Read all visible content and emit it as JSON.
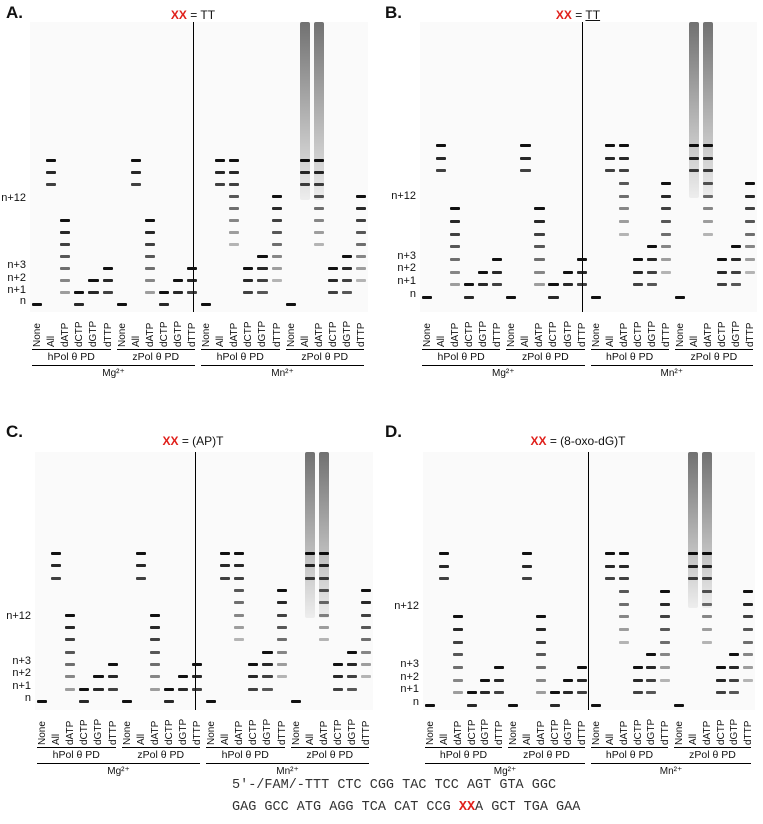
{
  "panels": [
    {
      "letter": "A.",
      "xx": "XX",
      "title_rest": " = TT",
      "underline": false
    },
    {
      "letter": "B.",
      "xx": "XX",
      "title_rest": "TT",
      "underline": true
    },
    {
      "letter": "C.",
      "xx": "XX",
      "title_rest": " = (AP)T",
      "underline": false
    },
    {
      "letter": "D.",
      "xx": "XX",
      "title_rest": " = (8-oxo-dG)T",
      "underline": false
    }
  ],
  "markers": [
    "n+12",
    "n+3",
    "n+2",
    "n+1",
    "n"
  ],
  "lanes": [
    "None",
    "All",
    "dATP",
    "dCTP",
    "dGTP",
    "dTTP"
  ],
  "groups": [
    "hPol θ PD",
    "zPol θ PD"
  ],
  "ions": [
    "Mg²⁺",
    "Mn²⁺"
  ],
  "equals": " = ",
  "sequence": {
    "top": "5'-/FAM/-TTT CTC CGG TAC TCC AGT GTA GGC",
    "bottom_pre": "GAG GCC ATG AGG TCA CAT CCG ",
    "bottom_xx": "XX",
    "bottom_post": "A GCT TGA GAA"
  },
  "colors": {
    "accent_red": "#e0201b",
    "band": "#111111",
    "gel_bg": "#fafafa"
  }
}
